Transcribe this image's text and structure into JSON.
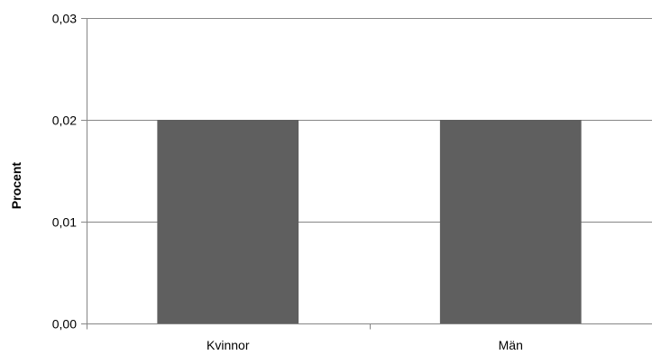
{
  "chart_data": {
    "type": "bar",
    "categories": [
      "Kvinnor",
      "Män"
    ],
    "values": [
      0.02,
      0.02
    ],
    "title": "",
    "xlabel": "",
    "ylabel": "Procent",
    "ylim": [
      0,
      0.03
    ],
    "yticks": [
      0,
      0.01,
      0.02,
      0.03
    ],
    "ytick_labels": [
      "0,00",
      "0,01",
      "0,02",
      "0,03"
    ],
    "grid": true,
    "legend": "none",
    "bar_color": "#5f5f5f",
    "grid_color": "#868686",
    "axis_color": "#868686"
  }
}
